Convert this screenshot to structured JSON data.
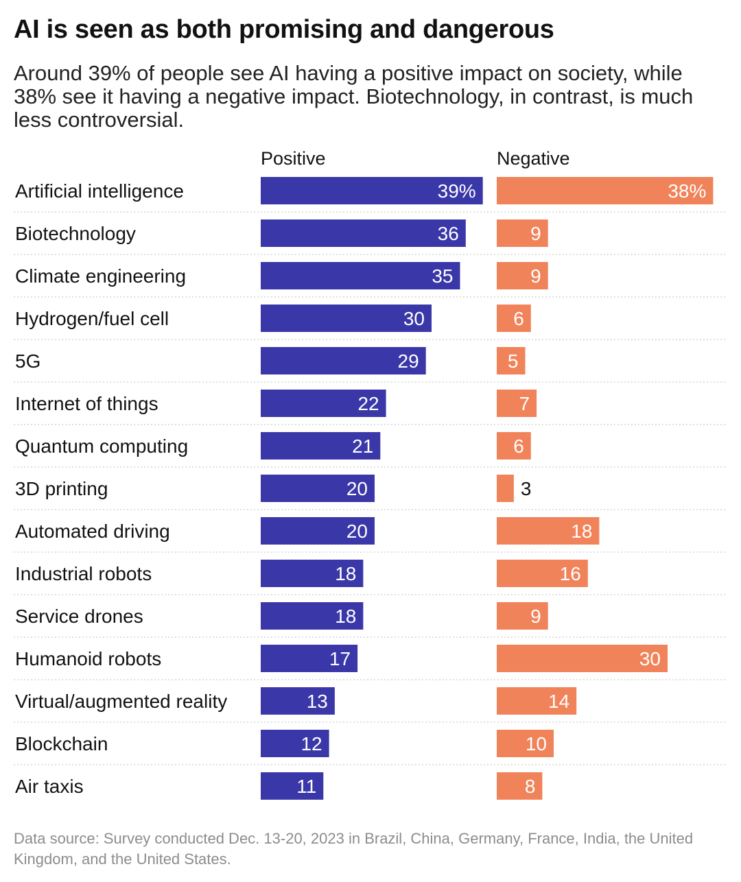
{
  "title": "AI is seen as both promising and dangerous",
  "subtitle": "Around 39% of people see AI having a positive impact on society, while 38% see it having a negative impact. Biotechnology, in contrast, is much less controversial.",
  "source": "Data source: Survey conducted Dec. 13-20, 2023 in Brazil, China, Germany, France, India, the United Kingdom, and the United States.",
  "colors": {
    "positive": "#3a37a8",
    "negative": "#f0835a"
  },
  "chart_data": {
    "type": "bar",
    "orientation": "horizontal",
    "title": "AI is seen as both promising and dangerous",
    "categories": [
      "Artificial intelligence",
      "Biotechnology",
      "Climate engineering",
      "Hydrogen/fuel cell",
      "5G",
      "Internet of things",
      "Quantum computing",
      "3D printing",
      "Automated driving",
      "Industrial robots",
      "Service drones",
      "Humanoid robots",
      "Virtual/augmented reality",
      "Blockchain",
      "Air taxis"
    ],
    "series": [
      {
        "name": "Positive",
        "values": [
          39,
          36,
          35,
          30,
          29,
          22,
          21,
          20,
          20,
          18,
          18,
          17,
          13,
          12,
          11
        ],
        "labels": [
          "39%",
          "36",
          "35",
          "30",
          "29",
          "22",
          "21",
          "20",
          "20",
          "18",
          "18",
          "17",
          "13",
          "12",
          "11"
        ]
      },
      {
        "name": "Negative",
        "values": [
          38,
          9,
          9,
          6,
          5,
          7,
          6,
          3,
          18,
          16,
          9,
          30,
          14,
          10,
          8
        ],
        "labels": [
          "38%",
          "9",
          "9",
          "6",
          "5",
          "7",
          "6",
          "3",
          "18",
          "16",
          "9",
          "30",
          "14",
          "10",
          "8"
        ]
      }
    ],
    "unit": "%",
    "xlim": [
      0,
      39
    ],
    "grid": false
  }
}
